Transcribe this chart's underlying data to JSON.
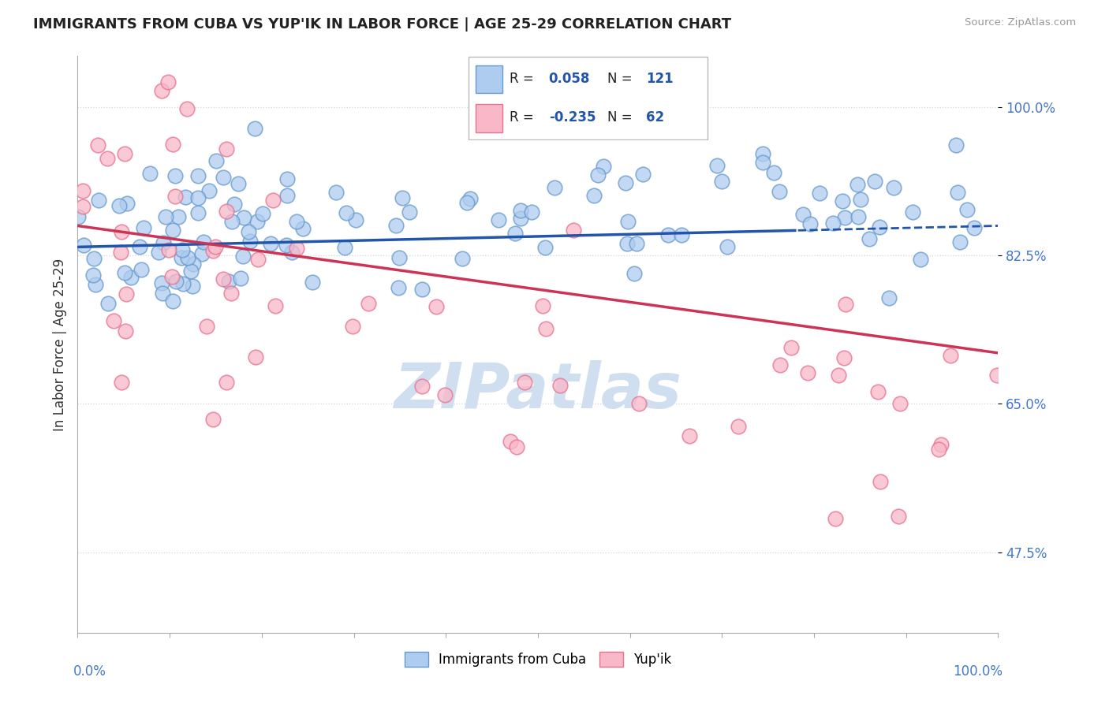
{
  "title": "IMMIGRANTS FROM CUBA VS YUP'IK IN LABOR FORCE | AGE 25-29 CORRELATION CHART",
  "source": "Source: ZipAtlas.com",
  "ylabel": "In Labor Force | Age 25-29",
  "yticks": [
    47.5,
    65.0,
    82.5,
    100.0
  ],
  "ytick_labels": [
    "47.5%",
    "65.0%",
    "82.5%",
    "100.0%"
  ],
  "xmin": 0.0,
  "xmax": 100.0,
  "ymin": 38.0,
  "ymax": 106.0,
  "blue_R": 0.058,
  "blue_N": 121,
  "pink_R": -0.235,
  "pink_N": 62,
  "blue_color": "#aeccf0",
  "blue_edge": "#6699cc",
  "pink_color": "#f8b8c8",
  "pink_edge": "#e87090",
  "blue_line_color": "#2255aa",
  "pink_line_color": "#cc3355",
  "legend_blue_box": "#aeccf0",
  "legend_pink_box": "#f8b8c8",
  "watermark": "ZIPatlas",
  "watermark_color": "#d0dff0",
  "background_color": "#ffffff",
  "grid_color": "#cccccc",
  "R_color": "#2255aa",
  "N_color": "#2255aa",
  "title_color": "#222222",
  "source_color": "#999999",
  "tick_color": "#4477cc",
  "ylabel_color": "#333333"
}
